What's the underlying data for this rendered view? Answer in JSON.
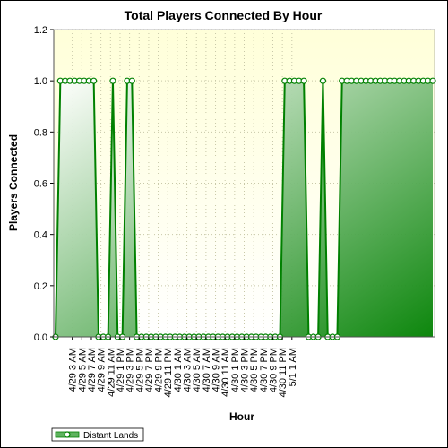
{
  "chart_data": {
    "type": "area",
    "title": "Total Players Connected By Hour",
    "xlabel": "Hour",
    "ylabel": "Players Connected",
    "ylim": [
      0,
      1.2
    ],
    "yticks": [
      "0.0",
      "0.2",
      "0.4",
      "0.6",
      "0.8",
      "1.0",
      "1.2"
    ],
    "grid": true,
    "legend_position": "bottom-left",
    "x_tick_labels": [
      "4/29 3 AM",
      "4/29 5 AM",
      "4/29 7 AM",
      "4/29 9 AM",
      "4/29 11 AM",
      "4/29 1 PM",
      "4/29 3 PM",
      "4/29 5 PM",
      "4/29 7 PM",
      "4/29 9 PM",
      "4/29 11 PM",
      "4/30 1 AM",
      "4/30 3 AM",
      "4/30 5 AM",
      "4/30 7 AM",
      "4/30 9 AM",
      "4/30 11 AM",
      "4/30 1 PM",
      "4/30 3 PM",
      "4/30 5 PM",
      "4/30 7 PM",
      "4/30 9 PM",
      "4/30 11 PM",
      "5/1 1 AM"
    ],
    "series": [
      {
        "name": "Distant Lands",
        "color": "#008000",
        "values": [
          0,
          1,
          1,
          1,
          1,
          1,
          1,
          1,
          1,
          0,
          0,
          0,
          1,
          0,
          0,
          1,
          1,
          0,
          0,
          0,
          0,
          0,
          0,
          0,
          0,
          0,
          0,
          0,
          0,
          0,
          0,
          0,
          0,
          0,
          0,
          0,
          0,
          0,
          0,
          0,
          0,
          0,
          0,
          0,
          0,
          0,
          0,
          0,
          1,
          1,
          1,
          1,
          1,
          0,
          0,
          0,
          1,
          0,
          0,
          0,
          1,
          1,
          1,
          1,
          1,
          1,
          1,
          1,
          1,
          1,
          1,
          1,
          1,
          1,
          1,
          1,
          1,
          1,
          1,
          1
        ]
      }
    ]
  }
}
